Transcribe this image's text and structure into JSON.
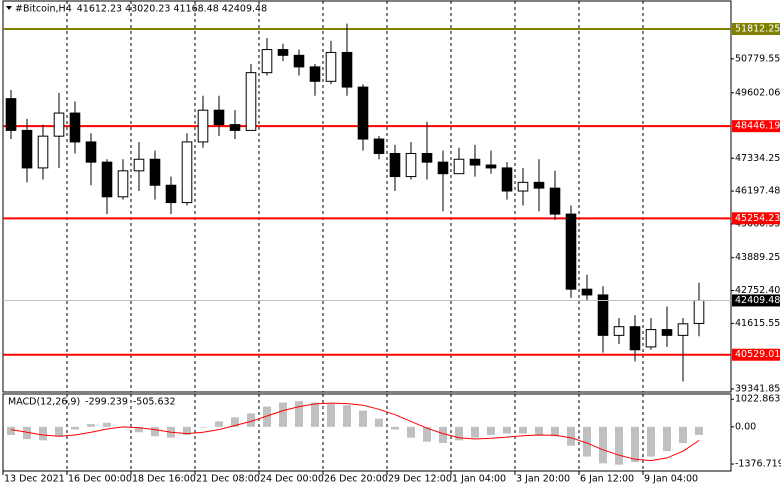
{
  "chart_data": [
    {
      "type": "candlestick",
      "title": "#Bitcoin,H4",
      "categories": [
        "13 Dec 2021",
        null,
        null,
        null,
        "16 Dec 00:00",
        null,
        null,
        null,
        "18 Dec 16:00",
        null,
        null,
        null,
        "21 Dec 08:00",
        null,
        null,
        null,
        "24 Dec 00:00",
        null,
        null,
        null,
        "26 Dec 20:00",
        null,
        null,
        null,
        "29 Dec 12:00",
        null,
        null,
        null,
        "1 Jan 04:00",
        null,
        null,
        null,
        "3 Jan 20:00",
        null,
        null,
        null,
        "6 Jan 12:00",
        null,
        null,
        null,
        "9 Jan 04:00",
        null,
        null,
        null
      ],
      "open": [
        49400,
        48300,
        47000,
        48100,
        48900,
        47900,
        47200,
        46000,
        46900,
        47300,
        46400,
        45800,
        47900,
        49000,
        48500,
        48300,
        50300,
        51100,
        50900,
        50500,
        50000,
        51000,
        49800,
        48000,
        47500,
        46700,
        47500,
        47200,
        46800,
        47300,
        47100,
        47000,
        46200,
        46500,
        46300,
        45400,
        42800,
        42600,
        41200,
        41500,
        40800,
        41400,
        41200,
        41612.23
      ],
      "high": [
        49700,
        48700,
        48500,
        49600,
        49300,
        48200,
        47300,
        47300,
        47900,
        47600,
        46700,
        48200,
        49500,
        49500,
        49000,
        50600,
        51500,
        51300,
        51100,
        50600,
        51400,
        52000,
        49900,
        48100,
        47800,
        47900,
        48600,
        47600,
        47700,
        47800,
        47600,
        47200,
        47000,
        47300,
        46900,
        45700,
        43300,
        42900,
        41800,
        41900,
        41800,
        42200,
        41800,
        43020.23
      ],
      "low": [
        48000,
        46500,
        46600,
        47000,
        47500,
        46400,
        45400,
        45900,
        46200,
        45900,
        45400,
        45700,
        47700,
        48100,
        48000,
        48300,
        50200,
        50700,
        50200,
        49500,
        49900,
        49500,
        47600,
        47300,
        46200,
        46600,
        46600,
        45500,
        46800,
        46700,
        46800,
        45900,
        45700,
        45500,
        45200,
        42500,
        42400,
        40600,
        40900,
        40300,
        40700,
        40800,
        39600,
        41168.48
      ],
      "close": [
        48300,
        47000,
        48100,
        48900,
        47900,
        47200,
        46000,
        46900,
        47300,
        46400,
        45800,
        47900,
        49000,
        48500,
        48300,
        50300,
        51100,
        50900,
        50500,
        50000,
        51000,
        49800,
        48000,
        47500,
        46700,
        47500,
        47200,
        46800,
        47300,
        47100,
        47000,
        46200,
        46500,
        46300,
        45400,
        42800,
        42600,
        41200,
        41500,
        40700,
        41400,
        41200,
        41600,
        42409.48
      ],
      "color": "#000000",
      "ylim": [
        39238,
        52782
      ],
      "yticks": [
        50779.55,
        49602.06,
        47334.25,
        46197.48,
        45060.55,
        43889.25,
        {
          "value": 42752.4,
          "label": "42752.40"
        },
        41615.55,
        39341.85
      ],
      "levels": [
        {
          "value": 51812.25,
          "color": "#808000"
        },
        {
          "value": 48446.19,
          "color": "#ff0000"
        },
        {
          "value": 45254.23,
          "color": "#ff0000"
        },
        {
          "value": 40529.01,
          "color": "#ff0000"
        }
      ],
      "grid": true
    },
    {
      "type": "macd",
      "title": "MACD(12,26,9)",
      "series": [
        {
          "color": "#c0c0c0",
          "values": [
            -300,
            -450,
            -500,
            -350,
            -100,
            100,
            150,
            0,
            -200,
            -350,
            -400,
            -300,
            0,
            200,
            350,
            500,
            750,
            900,
            950,
            900,
            850,
            800,
            600,
            300,
            -100,
            -400,
            -550,
            -600,
            -500,
            -400,
            -300,
            -250,
            -250,
            -300,
            -350,
            -700,
            -1100,
            -1350,
            -1400,
            -1300,
            -1100,
            -900,
            -600,
            -299.239
          ]
        },
        {
          "color": "#ff0000",
          "values": [
            -100,
            -200,
            -300,
            -350,
            -300,
            -200,
            -80,
            0,
            -30,
            -100,
            -200,
            -250,
            -200,
            -100,
            50,
            200,
            400,
            600,
            750,
            850,
            880,
            860,
            800,
            650,
            450,
            200,
            -50,
            -250,
            -400,
            -450,
            -420,
            -380,
            -330,
            -300,
            -310,
            -400,
            -600,
            -850,
            -1050,
            -1200,
            -1250,
            -1150,
            -900,
            -505.632
          ]
        }
      ],
      "ylim": [
        -1634,
        1216
      ],
      "yticks": [
        1022.863,
        {
          "value": 0,
          "label": "0.00"
        },
        -1376.719
      ]
    }
  ]
}
